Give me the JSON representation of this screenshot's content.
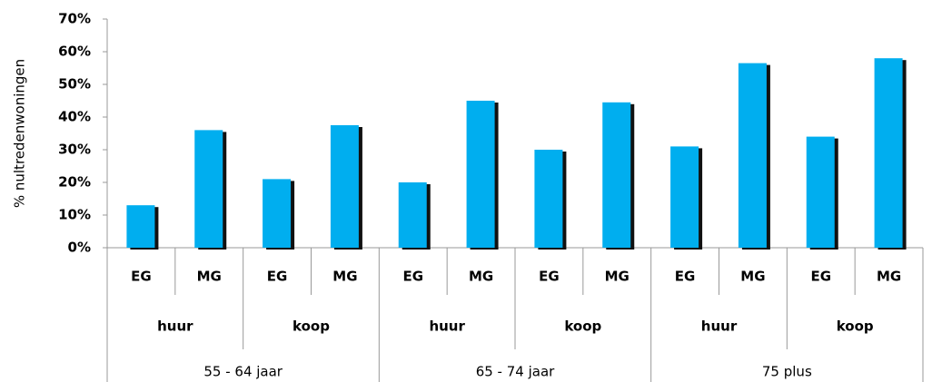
{
  "chart_data": {
    "type": "bar",
    "y_label": "% nultredenwoningen",
    "categories": [
      "EG",
      "MG",
      "EG",
      "MG",
      "EG",
      "MG",
      "EG",
      "MG",
      "EG",
      "MG",
      "EG",
      "MG"
    ],
    "subgroups": [
      "huur",
      "koop",
      "huur",
      "koop",
      "huur",
      "koop"
    ],
    "groups": [
      "55 - 64 jaar",
      "65 - 74 jaar",
      "75 plus"
    ],
    "values": [
      13,
      36,
      21,
      37.5,
      20,
      45,
      30,
      44.5,
      31,
      56.5,
      34,
      58
    ],
    "color": "#00aeef",
    "ylim": [
      0,
      70
    ],
    "yticks": [
      {
        "value": 0,
        "label": "0%"
      },
      {
        "value": 10,
        "label": "10%"
      },
      {
        "value": 20,
        "label": "20%"
      },
      {
        "value": 30,
        "label": "30%"
      },
      {
        "value": 40,
        "label": "40%"
      },
      {
        "value": 50,
        "label": "50%"
      },
      {
        "value": 60,
        "label": "60%"
      },
      {
        "value": 70,
        "label": "70%"
      }
    ],
    "grid": false
  }
}
